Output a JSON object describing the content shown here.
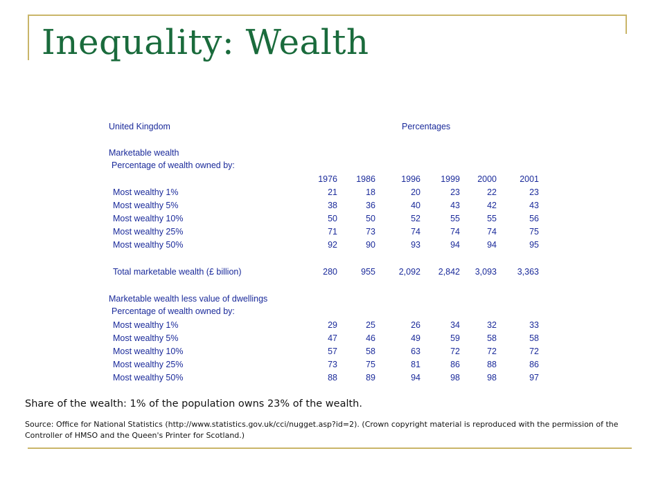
{
  "slide": {
    "title": "Inequality: Wealth",
    "caption": "Share of the wealth: 1% of the population owns 23% of the wealth.",
    "source": "Source: Office for National Statistics (http://www.statistics.gov.uk/cci/nugget.asp?id=2). (Crown copyright material is reproduced with the permission of the Controller of HMSO and the Queen's Printer for Scotland.)",
    "accent_color": "#c9b568",
    "title_color": "#1a6b3c"
  },
  "table": {
    "region": "United Kingdom",
    "units": "Percentages",
    "years": [
      "1976",
      "1986",
      "1996",
      "1999",
      "2000",
      "2001"
    ],
    "section1": {
      "heading": "Marketable wealth",
      "subheading": "Percentage of wealth owned by:",
      "rows": [
        {
          "label": "Most wealthy 1%",
          "values": [
            "21",
            "18",
            "20",
            "23",
            "22",
            "23"
          ]
        },
        {
          "label": "Most wealthy 5%",
          "values": [
            "38",
            "36",
            "40",
            "43",
            "42",
            "43"
          ]
        },
        {
          "label": "Most wealthy 10%",
          "values": [
            "50",
            "50",
            "52",
            "55",
            "55",
            "56"
          ]
        },
        {
          "label": "Most wealthy 25%",
          "values": [
            "71",
            "73",
            "74",
            "74",
            "74",
            "75"
          ]
        },
        {
          "label": "Most wealthy 50%",
          "values": [
            "92",
            "90",
            "93",
            "94",
            "94",
            "95"
          ]
        }
      ],
      "total": {
        "label": "Total marketable wealth (£ billion)",
        "values": [
          "280",
          "955",
          "2,092",
          "2,842",
          "3,093",
          "3,363"
        ]
      }
    },
    "section2": {
      "heading": "Marketable wealth less value of dwellings",
      "subheading": "Percentage of wealth owned by:",
      "rows": [
        {
          "label": "Most wealthy 1%",
          "values": [
            "29",
            "25",
            "26",
            "34",
            "32",
            "33"
          ]
        },
        {
          "label": "Most wealthy 5%",
          "values": [
            "47",
            "46",
            "49",
            "59",
            "58",
            "58"
          ]
        },
        {
          "label": "Most wealthy 10%",
          "values": [
            "57",
            "58",
            "63",
            "72",
            "72",
            "72"
          ]
        },
        {
          "label": "Most wealthy 25%",
          "values": [
            "73",
            "75",
            "81",
            "86",
            "88",
            "86"
          ]
        },
        {
          "label": "Most wealthy 50%",
          "values": [
            "88",
            "89",
            "94",
            "98",
            "98",
            "97"
          ]
        }
      ]
    }
  }
}
